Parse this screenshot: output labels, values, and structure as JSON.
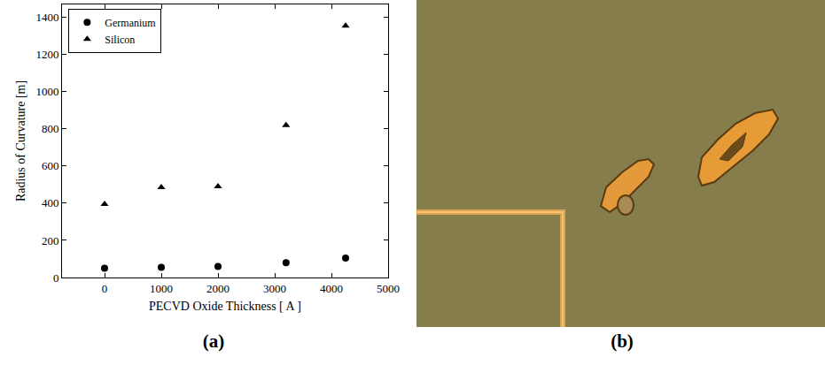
{
  "chart_data": {
    "type": "scatter",
    "x_label": "PECVD Oxide Thickness [ A ]",
    "y_label": "Radius of Curvature [m]",
    "series": [
      {
        "name": "Germanium",
        "color": "#000000",
        "marker": "circle",
        "x": [
          0,
          1000,
          2000,
          3200,
          4250
        ],
        "values": [
          50,
          55,
          60,
          80,
          105
        ]
      },
      {
        "name": "Silicon",
        "color": "#000000",
        "marker": "triangle-up",
        "x": [
          0,
          1000,
          2000,
          3200,
          4250
        ],
        "values": [
          395,
          485,
          490,
          820,
          1355
        ]
      }
    ],
    "xlim": [
      -750,
      5000
    ],
    "xticks": [
      0,
      1000,
      2000,
      3000,
      4000,
      5000
    ],
    "ylim": [
      0,
      1470
    ],
    "yticks": [
      0,
      200,
      400,
      600,
      800,
      1000,
      1200,
      1400
    ],
    "legend": "upper left",
    "grid": false
  },
  "panel_labels": [
    "(a)",
    "(b)"
  ]
}
